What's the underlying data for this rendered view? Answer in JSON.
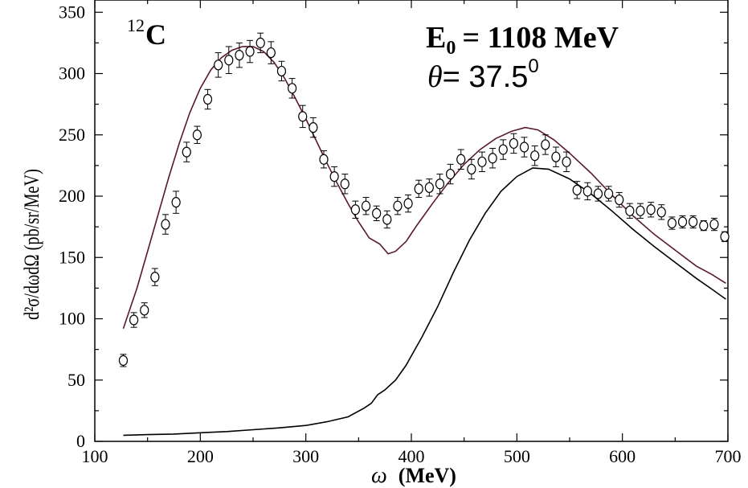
{
  "chart_data": {
    "type": "line",
    "title": "",
    "xlabel_symbol": "ω",
    "xlabel_unit": "(MeV)",
    "ylabel_text": "d²σ/dωdΩ (pb/sr/MeV)",
    "xlim": [
      100,
      700
    ],
    "ylim": [
      0,
      360
    ],
    "xticks": [
      100,
      200,
      300,
      400,
      500,
      600,
      700
    ],
    "yticks": [
      0,
      50,
      100,
      150,
      200,
      250,
      300,
      350
    ],
    "grid": false,
    "annotations": {
      "nucleus_mass": "12",
      "nucleus_symbol": "C",
      "energy_label": "E",
      "energy_sub": "0",
      "energy_value": "= 1108 MeV",
      "angle_label": "θ",
      "angle_value": "= 37.5",
      "angle_sup": "0"
    },
    "series": [
      {
        "kind": "scatter_errorbars",
        "marker": "open-circle",
        "x": [
          127,
          137,
          147,
          157,
          167,
          177,
          187,
          197,
          207,
          217,
          227,
          237,
          247,
          257,
          267,
          277,
          287,
          297,
          307,
          317,
          327,
          337,
          347,
          357,
          367,
          377,
          387,
          397,
          407,
          417,
          427,
          437,
          447,
          457,
          467,
          477,
          487,
          497,
          507,
          517,
          527,
          537,
          547,
          557,
          567,
          577,
          587,
          597,
          607,
          617,
          627,
          637,
          647,
          657,
          667,
          677,
          687,
          697
        ],
        "y": [
          66,
          99,
          107,
          134,
          177,
          195,
          236,
          250,
          279,
          307,
          311,
          315,
          318,
          325,
          317,
          302,
          288,
          265,
          256,
          230,
          216,
          210,
          189,
          192,
          186,
          181,
          192,
          194,
          206,
          207,
          210,
          218,
          230,
          222,
          228,
          231,
          238,
          243,
          240,
          233,
          242,
          232,
          228,
          205,
          204,
          202,
          202,
          197,
          188,
          188,
          189,
          187,
          178,
          179,
          179,
          176,
          177,
          167
        ],
        "err": [
          5,
          6,
          6,
          7,
          8,
          9,
          8,
          7,
          8,
          10,
          11,
          10,
          9,
          8,
          9,
          8,
          8,
          9,
          8,
          7,
          8,
          8,
          7,
          7,
          6,
          7,
          7,
          7,
          7,
          7,
          8,
          8,
          8,
          8,
          8,
          8,
          8,
          8,
          8,
          8,
          8,
          8,
          8,
          7,
          7,
          6,
          6,
          6,
          6,
          6,
          6,
          6,
          5,
          5,
          5,
          4,
          5,
          4
        ]
      },
      {
        "kind": "line",
        "color": "#5a1a28",
        "x": [
          127,
          140,
          150,
          160,
          170,
          180,
          190,
          200,
          210,
          220,
          230,
          240,
          250,
          260,
          270,
          280,
          290,
          300,
          310,
          320,
          330,
          340,
          350,
          360,
          370,
          378,
          385,
          395,
          405,
          420,
          435,
          450,
          465,
          480,
          495,
          508,
          520,
          535,
          550,
          570,
          590,
          610,
          630,
          650,
          670,
          685,
          698
        ],
        "y": [
          92,
          125,
          155,
          185,
          215,
          243,
          268,
          288,
          303,
          313,
          319,
          322,
          322,
          318,
          309,
          296,
          280,
          263,
          245,
          227,
          210,
          194,
          179,
          166,
          161,
          153,
          155,
          163,
          176,
          194,
          211,
          226,
          238,
          247,
          253,
          256,
          254,
          246,
          235,
          219,
          201,
          184,
          169,
          156,
          143,
          136,
          129
        ]
      },
      {
        "kind": "line",
        "color": "#000000",
        "x": [
          127,
          150,
          175,
          200,
          225,
          250,
          275,
          300,
          320,
          340,
          355,
          362,
          368,
          375,
          385,
          395,
          410,
          425,
          440,
          455,
          470,
          485,
          500,
          515,
          530,
          550,
          570,
          590,
          610,
          630,
          650,
          670,
          685,
          698
        ],
        "y": [
          5,
          5.5,
          6,
          7,
          8,
          9.5,
          11,
          13,
          16,
          20,
          27,
          31,
          38,
          42,
          50,
          62,
          85,
          110,
          138,
          164,
          186,
          204,
          216,
          223,
          222,
          214,
          202,
          188,
          173,
          159,
          146,
          133,
          124,
          116
        ]
      }
    ]
  }
}
